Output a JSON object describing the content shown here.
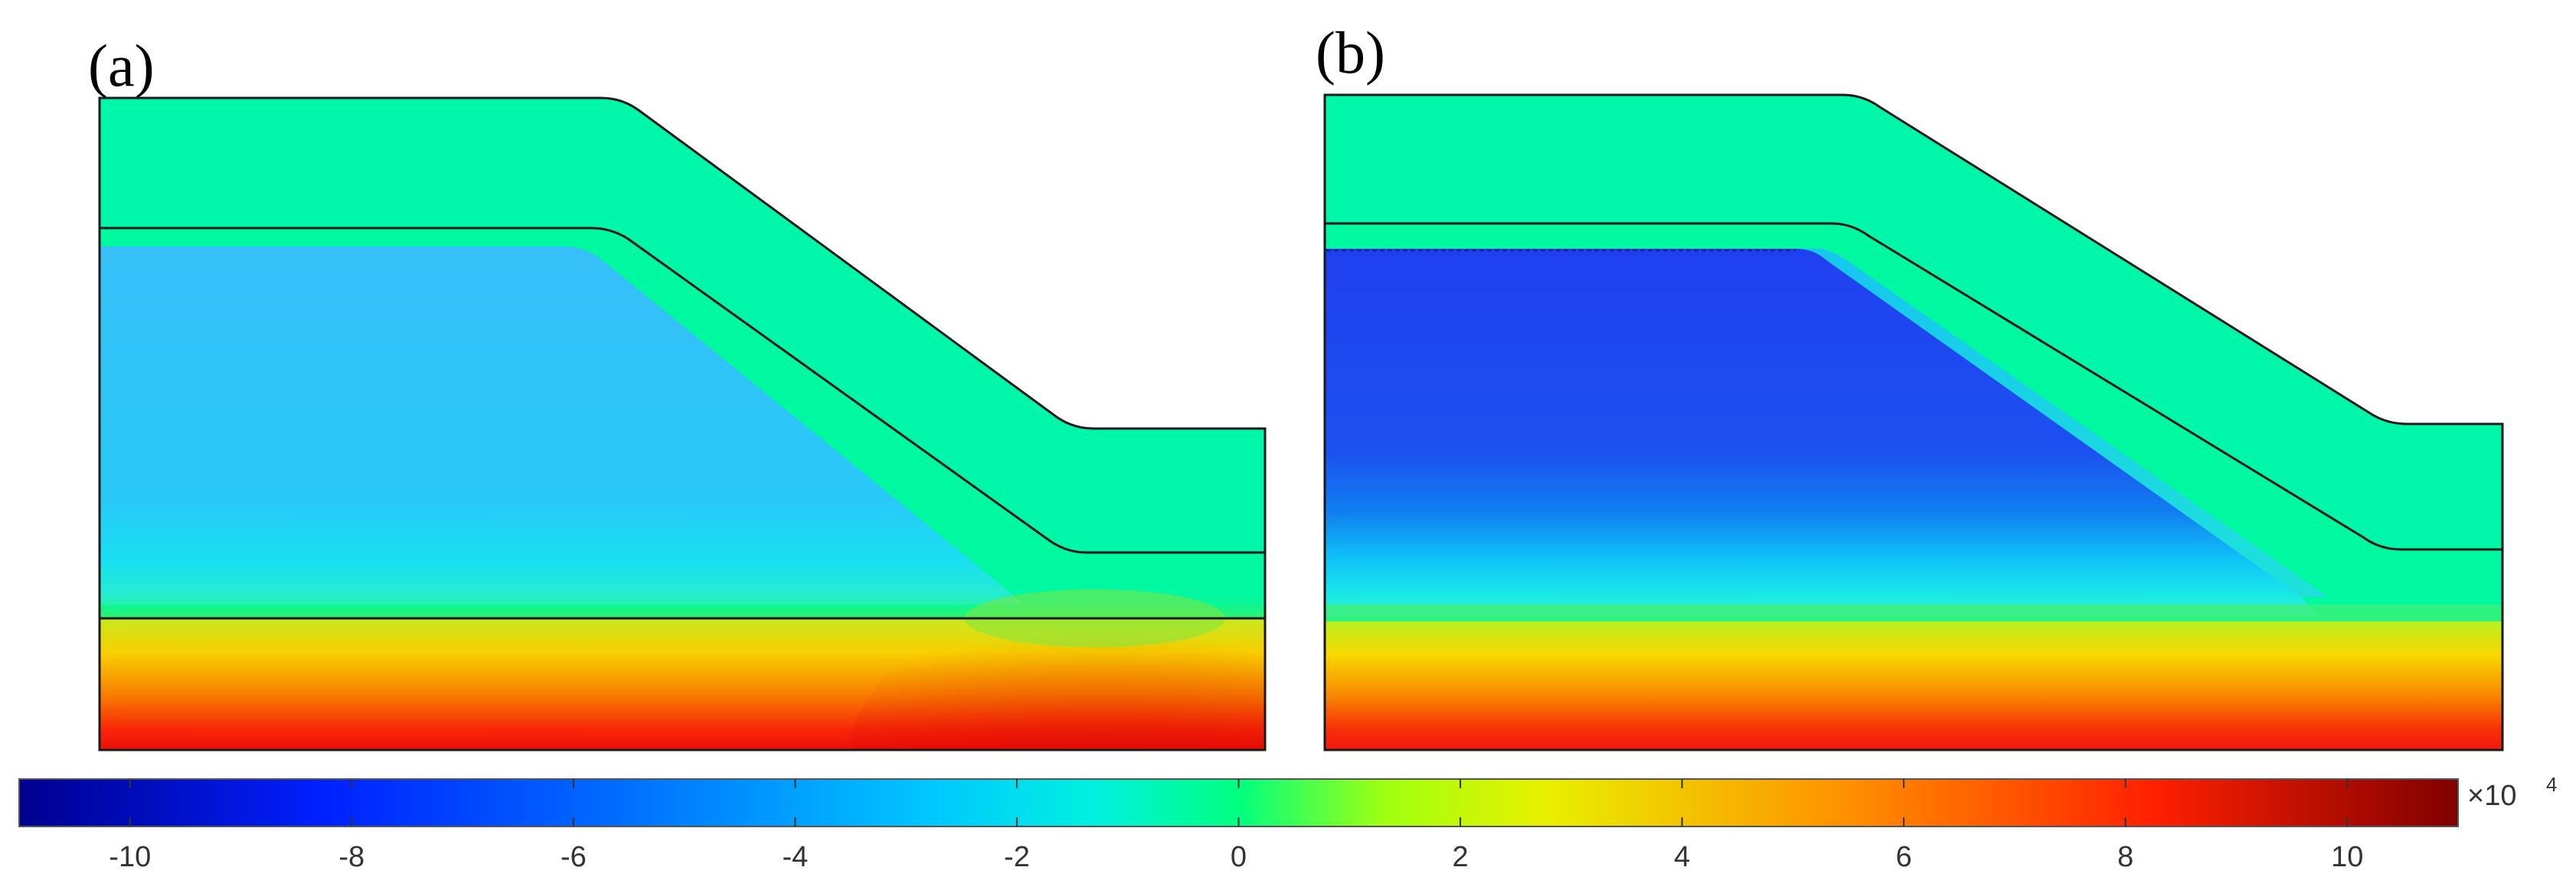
{
  "panels": [
    {
      "id": "a",
      "label": "(a)",
      "core_color": "#25c8f8"
    },
    {
      "id": "b",
      "label": "(b)",
      "core_color": "#2048f0"
    }
  ],
  "colorbar": {
    "colormap": "jet",
    "min": -11,
    "max": 11,
    "ticks": [
      -10,
      -8,
      -6,
      -4,
      -2,
      0,
      2,
      4,
      6,
      8,
      10
    ],
    "tick_labels": [
      "-10",
      "-8",
      "-6",
      "-4",
      "-2",
      "0",
      "2",
      "4",
      "6",
      "8",
      "10"
    ],
    "unit_base": "×10",
    "unit_exponent": "4"
  },
  "colors": {
    "outline": "#1a1a1a",
    "zero_level": "#00f890",
    "slope_layer": "#00f8a0",
    "bottom_top": "#d4e820",
    "bottom_mid": "#f8a800",
    "bottom_low": "#f81010"
  }
}
